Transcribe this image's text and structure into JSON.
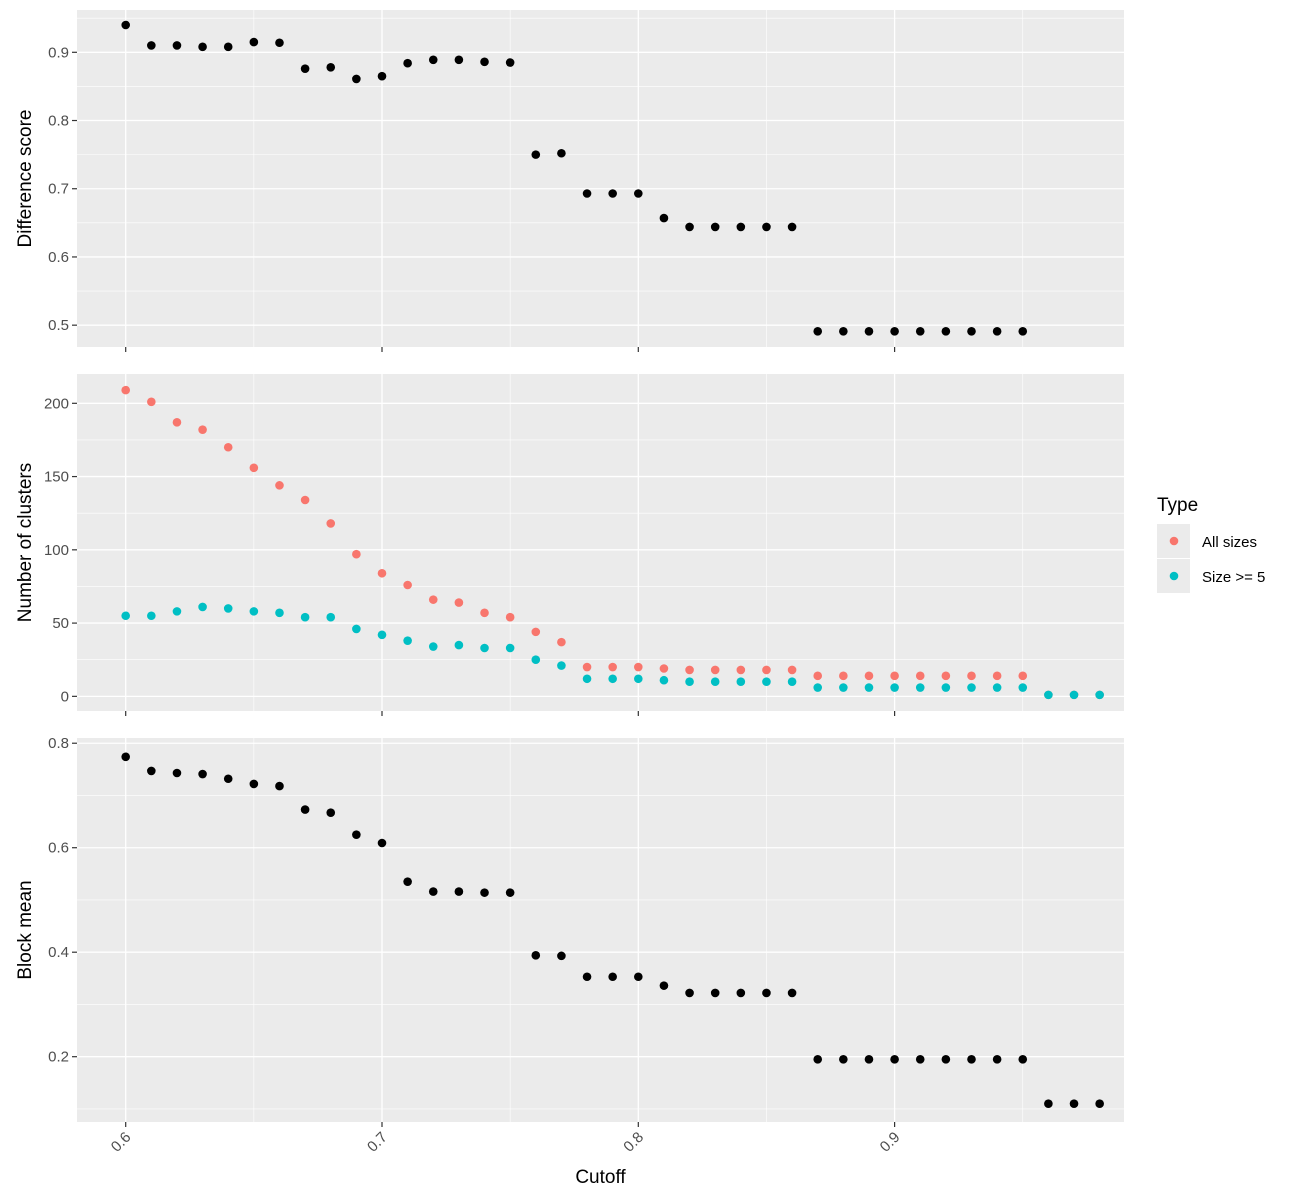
{
  "chart_data": [
    {
      "type": "scatter",
      "ylabel": "Difference score",
      "xlim": [
        0.581,
        0.9895
      ],
      "ylim": [
        0.468,
        0.962
      ],
      "yticks": [
        0.5,
        0.6,
        0.7,
        0.8,
        0.9
      ],
      "ytick_labels": [
        "0.5",
        "0.6",
        "0.7",
        "0.8",
        "0.9"
      ],
      "series": [
        {
          "color": "#000000",
          "points": [
            [
              0.6,
              0.94
            ],
            [
              0.61,
              0.91
            ],
            [
              0.62,
              0.91
            ],
            [
              0.63,
              0.908
            ],
            [
              0.64,
              0.908
            ],
            [
              0.65,
              0.915
            ],
            [
              0.66,
              0.914
            ],
            [
              0.67,
              0.876
            ],
            [
              0.68,
              0.878
            ],
            [
              0.69,
              0.861
            ],
            [
              0.7,
              0.865
            ],
            [
              0.71,
              0.884
            ],
            [
              0.72,
              0.889
            ],
            [
              0.73,
              0.889
            ],
            [
              0.74,
              0.886
            ],
            [
              0.75,
              0.885
            ],
            [
              0.76,
              0.75
            ],
            [
              0.77,
              0.752
            ],
            [
              0.78,
              0.693
            ],
            [
              0.79,
              0.693
            ],
            [
              0.8,
              0.693
            ],
            [
              0.81,
              0.657
            ],
            [
              0.82,
              0.644
            ],
            [
              0.83,
              0.644
            ],
            [
              0.84,
              0.644
            ],
            [
              0.85,
              0.644
            ],
            [
              0.86,
              0.644
            ],
            [
              0.87,
              0.491
            ],
            [
              0.88,
              0.491
            ],
            [
              0.89,
              0.491
            ],
            [
              0.9,
              0.491
            ],
            [
              0.91,
              0.491
            ],
            [
              0.92,
              0.491
            ],
            [
              0.93,
              0.491
            ],
            [
              0.94,
              0.491
            ],
            [
              0.95,
              0.491
            ]
          ]
        }
      ]
    },
    {
      "type": "scatter",
      "ylabel": "Number of clusters",
      "xlim": [
        0.581,
        0.9895
      ],
      "ylim": [
        -10,
        220
      ],
      "yticks": [
        0,
        50,
        100,
        150,
        200
      ],
      "ytick_labels": [
        "0",
        "50",
        "100",
        "150",
        "200"
      ],
      "legend": {
        "title": "Type",
        "position": "right"
      },
      "series": [
        {
          "name": "All sizes",
          "color": "#f8766d",
          "points": [
            [
              0.6,
              209
            ],
            [
              0.61,
              201
            ],
            [
              0.62,
              187
            ],
            [
              0.63,
              182
            ],
            [
              0.64,
              170
            ],
            [
              0.65,
              156
            ],
            [
              0.66,
              144
            ],
            [
              0.67,
              134
            ],
            [
              0.68,
              118
            ],
            [
              0.69,
              97
            ],
            [
              0.7,
              84
            ],
            [
              0.71,
              76
            ],
            [
              0.72,
              66
            ],
            [
              0.73,
              64
            ],
            [
              0.74,
              57
            ],
            [
              0.75,
              54
            ],
            [
              0.76,
              44
            ],
            [
              0.77,
              37
            ],
            [
              0.78,
              20
            ],
            [
              0.79,
              20
            ],
            [
              0.8,
              20
            ],
            [
              0.81,
              19
            ],
            [
              0.82,
              18
            ],
            [
              0.83,
              18
            ],
            [
              0.84,
              18
            ],
            [
              0.85,
              18
            ],
            [
              0.86,
              18
            ],
            [
              0.87,
              14
            ],
            [
              0.88,
              14
            ],
            [
              0.89,
              14
            ],
            [
              0.9,
              14
            ],
            [
              0.91,
              14
            ],
            [
              0.92,
              14
            ],
            [
              0.93,
              14
            ],
            [
              0.94,
              14
            ],
            [
              0.95,
              14
            ],
            [
              0.96,
              1
            ],
            [
              0.97,
              1
            ],
            [
              0.98,
              1
            ]
          ]
        },
        {
          "name": "Size >= 5",
          "color": "#00bfc4",
          "points": [
            [
              0.6,
              55
            ],
            [
              0.61,
              55
            ],
            [
              0.62,
              58
            ],
            [
              0.63,
              61
            ],
            [
              0.64,
              60
            ],
            [
              0.65,
              58
            ],
            [
              0.66,
              57
            ],
            [
              0.67,
              54
            ],
            [
              0.68,
              54
            ],
            [
              0.69,
              46
            ],
            [
              0.7,
              42
            ],
            [
              0.71,
              38
            ],
            [
              0.72,
              34
            ],
            [
              0.73,
              35
            ],
            [
              0.74,
              33
            ],
            [
              0.75,
              33
            ],
            [
              0.76,
              25
            ],
            [
              0.77,
              21
            ],
            [
              0.78,
              12
            ],
            [
              0.79,
              12
            ],
            [
              0.8,
              12
            ],
            [
              0.81,
              11
            ],
            [
              0.82,
              10
            ],
            [
              0.83,
              10
            ],
            [
              0.84,
              10
            ],
            [
              0.85,
              10
            ],
            [
              0.86,
              10
            ],
            [
              0.87,
              6
            ],
            [
              0.88,
              6
            ],
            [
              0.89,
              6
            ],
            [
              0.9,
              6
            ],
            [
              0.91,
              6
            ],
            [
              0.92,
              6
            ],
            [
              0.93,
              6
            ],
            [
              0.94,
              6
            ],
            [
              0.95,
              6
            ],
            [
              0.96,
              1
            ],
            [
              0.97,
              1
            ],
            [
              0.98,
              1
            ]
          ]
        }
      ]
    },
    {
      "type": "scatter",
      "xlabel": "Cutoff",
      "ylabel": "Block mean",
      "xlim": [
        0.581,
        0.9895
      ],
      "ylim": [
        0.075,
        0.81
      ],
      "yticks": [
        0.2,
        0.4,
        0.6,
        0.8
      ],
      "ytick_labels": [
        "0.2",
        "0.4",
        "0.6",
        "0.8"
      ],
      "xticks": [
        0.6,
        0.7,
        0.8,
        0.9
      ],
      "xtick_labels": [
        "0.6",
        "0.7",
        "0.8",
        "0.9"
      ],
      "series": [
        {
          "color": "#000000",
          "points": [
            [
              0.6,
              0.774
            ],
            [
              0.61,
              0.747
            ],
            [
              0.62,
              0.743
            ],
            [
              0.63,
              0.741
            ],
            [
              0.64,
              0.732
            ],
            [
              0.65,
              0.722
            ],
            [
              0.66,
              0.718
            ],
            [
              0.67,
              0.673
            ],
            [
              0.68,
              0.667
            ],
            [
              0.69,
              0.625
            ],
            [
              0.7,
              0.609
            ],
            [
              0.71,
              0.535
            ],
            [
              0.72,
              0.516
            ],
            [
              0.73,
              0.516
            ],
            [
              0.74,
              0.514
            ],
            [
              0.75,
              0.514
            ],
            [
              0.76,
              0.394
            ],
            [
              0.77,
              0.393
            ],
            [
              0.78,
              0.353
            ],
            [
              0.79,
              0.353
            ],
            [
              0.8,
              0.353
            ],
            [
              0.81,
              0.336
            ],
            [
              0.82,
              0.322
            ],
            [
              0.83,
              0.322
            ],
            [
              0.84,
              0.322
            ],
            [
              0.85,
              0.322
            ],
            [
              0.86,
              0.322
            ],
            [
              0.87,
              0.195
            ],
            [
              0.88,
              0.195
            ],
            [
              0.89,
              0.195
            ],
            [
              0.9,
              0.195
            ],
            [
              0.91,
              0.195
            ],
            [
              0.92,
              0.195
            ],
            [
              0.93,
              0.195
            ],
            [
              0.94,
              0.195
            ],
            [
              0.95,
              0.195
            ],
            [
              0.96,
              0.11
            ],
            [
              0.97,
              0.11
            ],
            [
              0.98,
              0.11
            ]
          ]
        }
      ]
    }
  ]
}
